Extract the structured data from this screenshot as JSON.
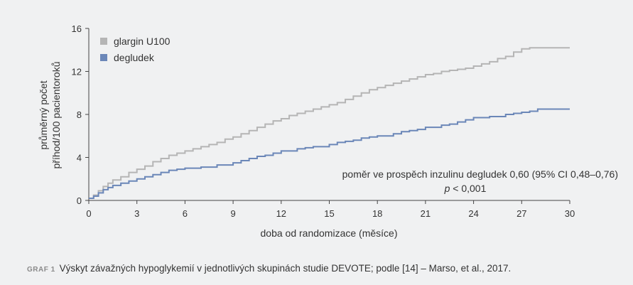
{
  "chart_data": {
    "type": "line",
    "step": true,
    "xlabel": "doba od randomizace (měsíce)",
    "ylabel_line1": "průměrný počet",
    "ylabel_line2": "příhod/100 pacientoroků",
    "xlim": [
      0,
      30
    ],
    "ylim": [
      0,
      16
    ],
    "xticks": [
      0,
      3,
      6,
      9,
      12,
      15,
      18,
      21,
      24,
      27,
      30
    ],
    "yticks": [
      0,
      4,
      8,
      12,
      16
    ],
    "grid": false,
    "legend_position": "top-left",
    "series": [
      {
        "name": "glargin U100",
        "color": "#b5b5b5",
        "x": [
          0,
          0.3,
          0.6,
          0.9,
          1.2,
          1.5,
          2.0,
          2.5,
          3.0,
          3.5,
          4.0,
          4.5,
          5.0,
          5.5,
          6.0,
          6.5,
          7.0,
          7.5,
          8.0,
          8.5,
          9.0,
          9.5,
          10.0,
          10.5,
          11.0,
          11.5,
          12.0,
          12.5,
          13.0,
          13.5,
          14.0,
          14.5,
          15.0,
          15.5,
          16.0,
          16.5,
          17.0,
          17.5,
          18.0,
          18.5,
          19.0,
          19.5,
          20.0,
          20.5,
          21.0,
          21.5,
          22.0,
          22.5,
          23.0,
          23.5,
          24.0,
          24.5,
          25.0,
          25.5,
          26.0,
          26.5,
          27.0,
          27.5,
          28.0,
          29.0,
          30.0
        ],
        "y": [
          0.2,
          0.5,
          0.9,
          1.3,
          1.6,
          1.9,
          2.2,
          2.6,
          2.9,
          3.2,
          3.6,
          3.9,
          4.2,
          4.4,
          4.6,
          4.8,
          5.0,
          5.2,
          5.4,
          5.7,
          5.9,
          6.2,
          6.5,
          6.8,
          7.1,
          7.4,
          7.6,
          7.9,
          8.1,
          8.3,
          8.5,
          8.7,
          8.9,
          9.1,
          9.4,
          9.7,
          10.0,
          10.3,
          10.5,
          10.7,
          10.9,
          11.1,
          11.3,
          11.5,
          11.7,
          11.8,
          12.0,
          12.1,
          12.2,
          12.3,
          12.5,
          12.7,
          12.9,
          13.2,
          13.4,
          13.8,
          14.1,
          14.2,
          14.2,
          14.2,
          14.2
        ]
      },
      {
        "name": "degludek",
        "color": "#6b87b8",
        "x": [
          0,
          0.3,
          0.6,
          0.9,
          1.2,
          1.5,
          2.0,
          2.5,
          3.0,
          3.5,
          4.0,
          4.5,
          5.0,
          5.5,
          6.0,
          7.0,
          8.0,
          9.0,
          9.5,
          10.0,
          10.5,
          11.0,
          11.5,
          12.0,
          13.0,
          13.5,
          14.0,
          15.0,
          15.5,
          16.0,
          16.5,
          17.0,
          17.5,
          18.0,
          19.0,
          19.5,
          20.0,
          20.5,
          21.0,
          22.0,
          22.5,
          23.0,
          23.5,
          24.0,
          25.0,
          26.0,
          26.5,
          27.0,
          27.5,
          28.0,
          29.0,
          30.0
        ],
        "y": [
          0.2,
          0.4,
          0.7,
          1.0,
          1.2,
          1.4,
          1.6,
          1.8,
          2.0,
          2.2,
          2.4,
          2.6,
          2.8,
          2.9,
          3.0,
          3.1,
          3.3,
          3.5,
          3.7,
          3.9,
          4.1,
          4.2,
          4.4,
          4.6,
          4.8,
          4.9,
          5.0,
          5.2,
          5.4,
          5.5,
          5.6,
          5.8,
          5.9,
          6.0,
          6.2,
          6.4,
          6.5,
          6.6,
          6.8,
          7.0,
          7.1,
          7.3,
          7.5,
          7.7,
          7.8,
          8.0,
          8.1,
          8.2,
          8.3,
          8.5,
          8.5,
          8.5
        ]
      }
    ],
    "annotation_line1": "poměr ve prospěch inzulinu degludek 0,60 (95% CI 0,48–0,76)",
    "annotation_line2_p": "p",
    "annotation_line2_rest": " < 0,001"
  },
  "caption": {
    "label": "GRAF 1",
    "text": "Výskyt závažných hypoglykemií v jednotlivých skupinách studie DEVOTE; podle [14] – Marso, et al., 2017."
  }
}
